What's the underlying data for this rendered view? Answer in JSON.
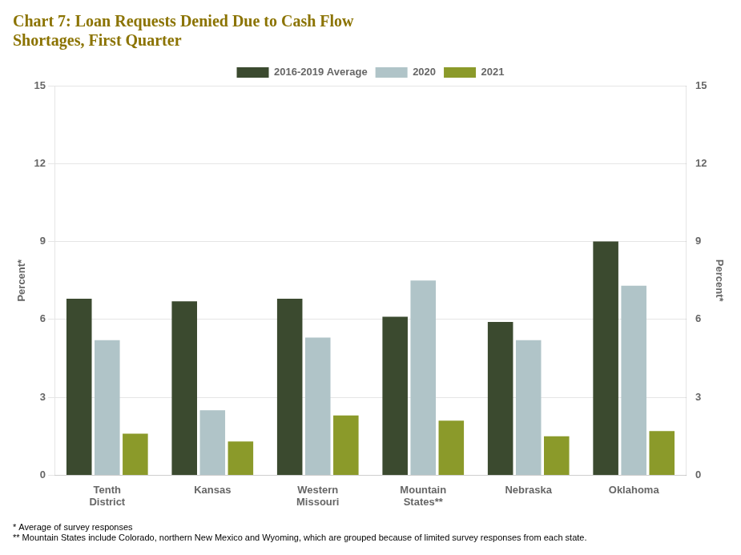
{
  "chart_data": {
    "type": "bar",
    "title": [
      "Chart 7: Loan Requests Denied Due to Cash Flow",
      "Shortages, First Quarter"
    ],
    "title_color": "#8B7300",
    "categories": [
      "Tenth\nDistrict",
      "Kansas",
      "Western\nMissouri",
      "Mountain\nStates**",
      "Nebraska",
      "Oklahoma"
    ],
    "series": [
      {
        "name": "2016-2019 Average",
        "color": "#3B4A2F",
        "values": [
          6.8,
          6.7,
          6.8,
          6.1,
          5.9,
          9.0
        ]
      },
      {
        "name": "2020",
        "color": "#B0C4C8",
        "values": [
          5.2,
          2.5,
          5.3,
          7.5,
          5.2,
          7.3
        ]
      },
      {
        "name": "2021",
        "color": "#8B9A2A",
        "values": [
          1.6,
          1.3,
          2.3,
          2.1,
          1.5,
          1.7
        ]
      }
    ],
    "y_label": "Percent*",
    "y2_label": "Percent*",
    "ylim": [
      0,
      15
    ],
    "yticks": [
      0,
      3,
      6,
      9,
      12,
      15
    ],
    "y2lim": [
      0,
      15
    ],
    "y2ticks": [
      0,
      3,
      6,
      9,
      12,
      15
    ],
    "grid": true,
    "legend": "top",
    "annotations": [
      "* Average of survey responses",
      "** Mountain States include Colorado, northern New Mexico and Wyoming, which are grouped because of limited survey responses from each state."
    ]
  }
}
